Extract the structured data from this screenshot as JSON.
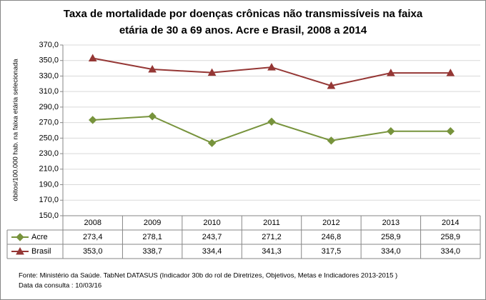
{
  "chart_data": {
    "type": "line",
    "title": [
      "Taxa de mortalidade por doenças crônicas não transmissíveis na faixa",
      "etária de 30 a  69 anos. Acre e Brasil, 2008 a 2014"
    ],
    "y_label": "óbitos/100.000 hab. na faixa etária selecionada",
    "categories": [
      "2008",
      "2009",
      "2010",
      "2011",
      "2012",
      "2013",
      "2014"
    ],
    "series": [
      {
        "name": "Acre",
        "color": "#77933c",
        "marker": "diamond",
        "values": [
          273.4,
          278.1,
          243.7,
          271.2,
          246.8,
          258.9,
          258.9
        ],
        "value_labels": [
          "273,4",
          "278,1",
          "243,7",
          "271,2",
          "246,8",
          "258,9",
          "258,9"
        ]
      },
      {
        "name": "Brasil",
        "color": "#953735",
        "marker": "triangle",
        "values": [
          353.0,
          338.7,
          334.4,
          341.3,
          317.5,
          334.0,
          334.0
        ],
        "value_labels": [
          "353,0",
          "338,7",
          "334,4",
          "341,3",
          "317,5",
          "334,0",
          "334,0"
        ]
      }
    ],
    "ylim": [
      150,
      370
    ],
    "yticks": [
      {
        "value": 150,
        "label": "150,0"
      },
      {
        "value": 170,
        "label": "170,0"
      },
      {
        "value": 190,
        "label": "190,0"
      },
      {
        "value": 210,
        "label": "210,0"
      },
      {
        "value": 230,
        "label": "230,0"
      },
      {
        "value": 250,
        "label": "250,0"
      },
      {
        "value": 270,
        "label": "270,0"
      },
      {
        "value": 290,
        "label": "290,0"
      },
      {
        "value": 310,
        "label": "310,0"
      },
      {
        "value": 330,
        "label": "330,0"
      },
      {
        "value": 350,
        "label": "350,0"
      },
      {
        "value": 370,
        "label": "370,0"
      }
    ],
    "grid": true,
    "notes": [
      "Fonte: Ministério da Saúde. TabNet DATASUS (Indicador 30b do rol de Diretrizes, Objetivos, Metas e Indicadores 2013-2015 )",
      "Data da consulta : 10/03/16"
    ]
  }
}
